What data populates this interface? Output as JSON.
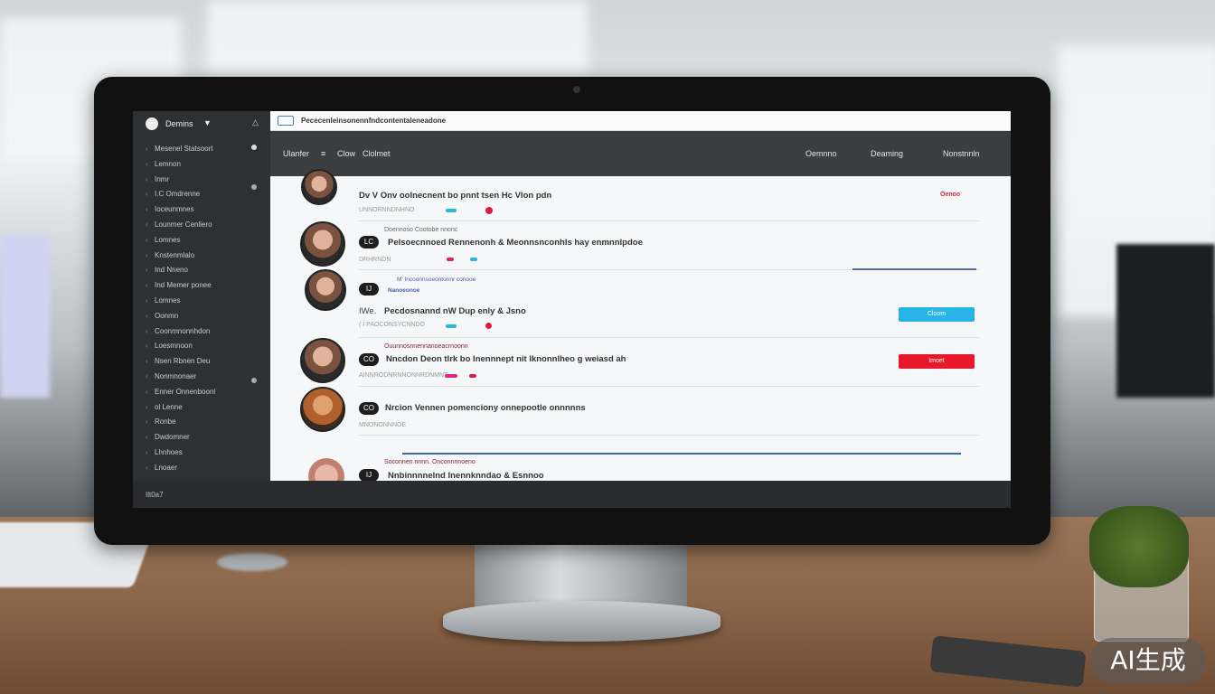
{
  "window": {
    "title": "Pececenleinsonennfndcontentaleneadone"
  },
  "sidebar": {
    "workspace": "Demins",
    "items": [
      "Mesenel Statsoort",
      "Lemnon",
      "Inmr",
      "I.C Omdrenne",
      "Ioceunmnes",
      "Lounmer Cenliero",
      "Lomnes",
      "Knstenmlalo",
      "Ind Nneno",
      "Ind Memer ponee",
      "Lomnes",
      "Oonmn",
      "Coonmnonnhdon",
      "Loesmnoon",
      "Nsen Rbnen Deu",
      "Nonmnonaer",
      "Enner Onnenboonl",
      "ol Lenne",
      "Ronbe",
      "Dwdomner",
      "Lhnhoes",
      "Lnoaer"
    ],
    "footer": "Ilt0a7"
  },
  "header": {
    "breadcrumb": [
      "Ulanfer",
      "Clow",
      "Clolmet"
    ],
    "nav": [
      "Oemnno",
      "Deaming",
      "Nonstnnln"
    ]
  },
  "rows": [
    {
      "badge": "",
      "title": "Dv V Onv oolnecnent bo pnnt tsen Hc Vlon pdn",
      "meta": "UNNORNNDNHNO",
      "tag": "",
      "status": "Oenoo",
      "action": null
    },
    {
      "badge": "LC",
      "title": "Pelsoecnnoed Rennenonh & Meonnsnconhls hay enmnnlpdoe",
      "meta": "DRHRNDN",
      "tag": "Doennoso   Cootobe nnonc",
      "status": "",
      "action": null
    },
    {
      "badge": "IJ",
      "title": "Pecdosnannd nW Dup enly & Jsno",
      "meta": "( I PAOCONSYCNNDO",
      "tag": "M'  Incoonnsoeontonnr conooe",
      "subtag": "Nanoeonoe",
      "prefix": "IWe.",
      "status": "",
      "action": {
        "label": "Cloom",
        "color": "#29b4e6"
      }
    },
    {
      "badge": "CO",
      "title": "Nncdon Deon tlrk bo Inennnept nit lknonnlheo g weiasd ah",
      "meta": "AINNRODNRNNONNRDNMNT",
      "tag": "Ouunnosnnennanoeacrnoonn",
      "status": "",
      "action": {
        "label": "Imoet",
        "color": "#e8182b"
      }
    },
    {
      "badge": "CO",
      "title": "Nrcion Vennen pomenciony onnepootle onnnnns",
      "meta": "MNONONNNOE",
      "tag": "",
      "status": "",
      "action": null
    },
    {
      "badge": "IJ",
      "title": "Nnbinnnnelnd  Inennknndao & Esnnoo",
      "meta": "",
      "tag": "Soconnen nnnn.  Onconnnnoeno",
      "status": "",
      "action": null
    }
  ],
  "colors": {
    "accent_blue": "#3a68b0",
    "cyan": "#29b4e6",
    "red": "#e8182b",
    "sidebar": "#2e3134",
    "header": "#3b3e41"
  },
  "watermark": "AI生成"
}
